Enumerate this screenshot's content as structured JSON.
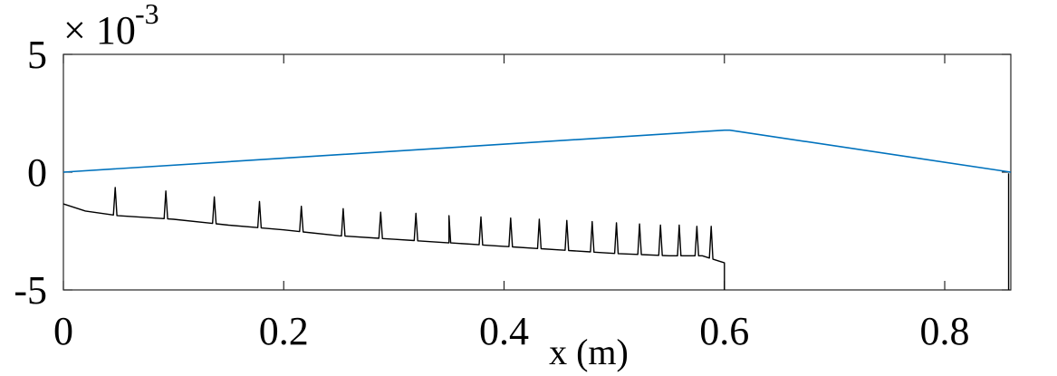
{
  "chart_data": {
    "type": "line",
    "title": "",
    "xlabel": "x (m)",
    "ylabel": "",
    "y_multiplier": {
      "base": "× 10",
      "exponent": "-3"
    },
    "xlim": [
      0,
      0.86
    ],
    "ylim": [
      -5,
      5
    ],
    "grid": false,
    "x_ticks": [
      {
        "value": 0,
        "label": "0"
      },
      {
        "value": 0.2,
        "label": "0.2"
      },
      {
        "value": 0.4,
        "label": "0.4"
      },
      {
        "value": 0.6,
        "label": "0.6"
      },
      {
        "value": 0.8,
        "label": "0.8"
      }
    ],
    "y_ticks": [
      {
        "value": -5,
        "label": "-5"
      },
      {
        "value": 0,
        "label": "0"
      },
      {
        "value": 5,
        "label": "5"
      }
    ],
    "series": [
      {
        "color": "#0072BD",
        "x": [
          0,
          0.6,
          0.605,
          0.86
        ],
        "y": [
          0,
          1.78,
          1.78,
          0
        ]
      },
      {
        "color": "#000000",
        "x": [
          0,
          0.02,
          0.05,
          0.1,
          0.15,
          0.2,
          0.25,
          0.3,
          0.35,
          0.4,
          0.45,
          0.5,
          0.55,
          0.58,
          0.59,
          0.6
        ],
        "y": [
          -1.35,
          -1.65,
          -1.85,
          -2.0,
          -2.25,
          -2.45,
          -2.7,
          -2.85,
          -3.0,
          -3.15,
          -3.3,
          -3.45,
          -3.55,
          -3.55,
          -3.7,
          -3.85
        ],
        "spikes": {
          "x": [
            0.047,
            0.093,
            0.137,
            0.178,
            0.216,
            0.254,
            0.288,
            0.32,
            0.35,
            0.379,
            0.406,
            0.432,
            0.457,
            0.48,
            0.502,
            0.523,
            0.542,
            0.559,
            0.575,
            0.588
          ],
          "peak": [
            -0.65,
            -0.8,
            -1.05,
            -1.25,
            -1.45,
            -1.55,
            -1.7,
            -1.75,
            -1.85,
            -1.9,
            -1.95,
            -2.0,
            -2.05,
            -2.1,
            -2.15,
            -2.2,
            -2.25,
            -2.25,
            -2.3,
            -2.3
          ]
        }
      }
    ]
  }
}
